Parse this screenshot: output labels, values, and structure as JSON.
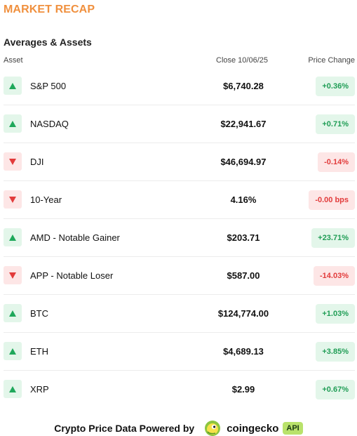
{
  "header": {
    "title": "MARKET RECAP",
    "section_title": "Averages & Assets"
  },
  "table": {
    "columns": {
      "asset": "Asset",
      "close": "Close 10/06/25",
      "change": "Price Change"
    },
    "rows": [
      {
        "name": "S&P 500",
        "close": "$6,740.28",
        "change": "+0.36%",
        "direction": "up"
      },
      {
        "name": "NASDAQ",
        "close": "$22,941.67",
        "change": "+0.71%",
        "direction": "up"
      },
      {
        "name": "DJI",
        "close": "$46,694.97",
        "change": "-0.14%",
        "direction": "down"
      },
      {
        "name": "10-Year",
        "close": "4.16%",
        "change": "-0.00 bps",
        "direction": "down"
      },
      {
        "name": "AMD - Notable Gainer",
        "close": "$203.71",
        "change": "+23.71%",
        "direction": "up"
      },
      {
        "name": "APP - Notable Loser",
        "close": "$587.00",
        "change": "-14.03%",
        "direction": "down"
      },
      {
        "name": "BTC",
        "close": "$124,774.00",
        "change": "+1.03%",
        "direction": "up"
      },
      {
        "name": "ETH",
        "close": "$4,689.13",
        "change": "+3.85%",
        "direction": "up"
      },
      {
        "name": "XRP",
        "close": "$2.99",
        "change": "+0.67%",
        "direction": "up"
      }
    ]
  },
  "footer": {
    "text": "Crypto Price Data Powered by",
    "brand": "coingecko",
    "api_badge": "API",
    "logo_icon": "gecko-logo-icon"
  },
  "colors": {
    "title": "#f0903e",
    "up": "#1fa85b",
    "down": "#e23b3b",
    "up_bg": "#e3f6ea",
    "down_bg": "#fde6e6",
    "api_bg": "#b9e26b"
  }
}
